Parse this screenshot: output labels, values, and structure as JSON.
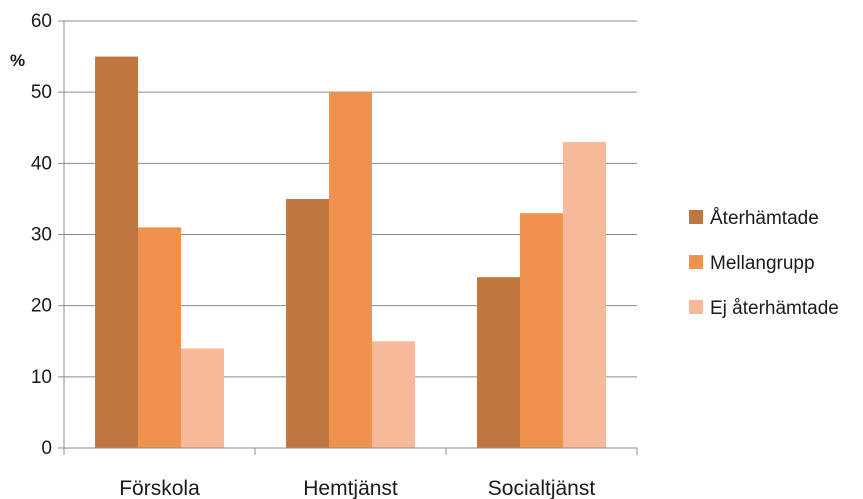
{
  "chart_data": {
    "type": "bar",
    "title": "",
    "xlabel": "",
    "ylabel": "%",
    "ylim": [
      0,
      60
    ],
    "yticks": [
      0,
      10,
      20,
      30,
      40,
      50,
      60
    ],
    "grid": true,
    "legend_position": "right",
    "categories": [
      "Förskola",
      "Hemtjänst",
      "Socialtjänst"
    ],
    "series": [
      {
        "name": "Återhämtade",
        "color": "#C0773F",
        "values": [
          55,
          35,
          24
        ]
      },
      {
        "name": "Mellangrupp",
        "color": "#F0924E",
        "values": [
          31,
          50,
          33
        ]
      },
      {
        "name": "Ej återhämtade",
        "color": "#F8B89A",
        "values": [
          14,
          15,
          43
        ]
      }
    ]
  }
}
